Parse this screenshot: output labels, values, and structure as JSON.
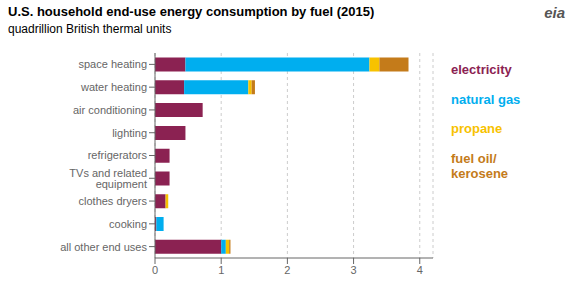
{
  "chart_data": {
    "type": "bar",
    "orientation": "horizontal",
    "stacked": true,
    "grid": true,
    "title": "U.S. household end-use energy consumption by fuel (2015)",
    "subtitle": "quadrillion British thermal units",
    "annotations": [
      "eia"
    ],
    "categories": [
      "all other end uses",
      "cooking",
      "clothes dryers",
      "TVs and related equipment",
      "refrigerators",
      "lighting",
      "air conditioning",
      "water heating",
      "space heating"
    ],
    "series": [
      {
        "name": "electricity",
        "color": "#8B2252",
        "values": [
          1.0,
          0.02,
          0.16,
          0.22,
          0.22,
          0.46,
          0.72,
          0.44,
          0.46
        ]
      },
      {
        "name": "natural gas",
        "color": "#00AEEF",
        "values": [
          0.07,
          0.11,
          0.0,
          0.0,
          0.0,
          0.0,
          0.0,
          0.97,
          2.78
        ]
      },
      {
        "name": "propane",
        "color": "#F7C200",
        "values": [
          0.05,
          0.0,
          0.04,
          0.0,
          0.0,
          0.0,
          0.0,
          0.05,
          0.15
        ]
      },
      {
        "name": "fuel oil/\nkerosene",
        "color": "#C47B1A",
        "values": [
          0.02,
          0.0,
          0.0,
          0.0,
          0.0,
          0.0,
          0.0,
          0.05,
          0.44
        ]
      }
    ],
    "xlim": [
      0,
      4.2
    ],
    "xticks": [
      0,
      1,
      2,
      3,
      4
    ]
  }
}
